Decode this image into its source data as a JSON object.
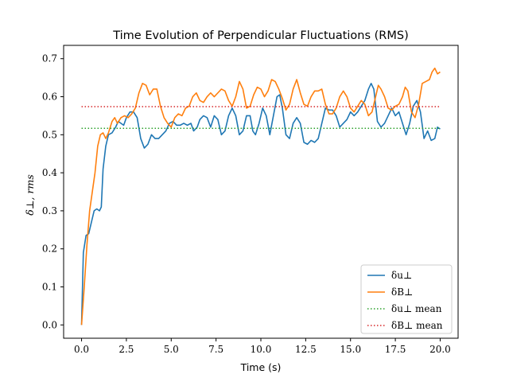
{
  "chart_data": {
    "type": "line",
    "title": "Time Evolution of Perpendicular Fluctuations (RMS)",
    "xlabel": "Time (s)",
    "ylabel": "δ⊥, rms",
    "xlim": [
      -1.0,
      21.0
    ],
    "ylim": [
      -0.035,
      0.735
    ],
    "grid": false,
    "legend_position": "lower-right",
    "x_ticks": [
      0,
      2.5,
      5,
      7.5,
      10,
      12.5,
      15,
      17.5,
      20
    ],
    "x_tick_labels": [
      "0.0",
      "2.5",
      "5.0",
      "7.5",
      "10.0",
      "12.5",
      "15.0",
      "17.5",
      "20.0"
    ],
    "y_ticks": [
      0,
      0.1,
      0.2,
      0.3,
      0.4,
      0.5,
      0.6,
      0.7
    ],
    "y_tick_labels": [
      "0.0",
      "0.1",
      "0.2",
      "0.3",
      "0.4",
      "0.5",
      "0.6",
      "0.7"
    ],
    "series": [
      {
        "name": "δu⊥",
        "color": "#1f77b4",
        "style": "solid",
        "points": [
          [
            0.0,
            0.0
          ],
          [
            0.1,
            0.19
          ],
          [
            0.25,
            0.235
          ],
          [
            0.4,
            0.24
          ],
          [
            0.55,
            0.27
          ],
          [
            0.7,
            0.3
          ],
          [
            0.85,
            0.305
          ],
          [
            1.0,
            0.3
          ],
          [
            1.1,
            0.31
          ],
          [
            1.2,
            0.41
          ],
          [
            1.35,
            0.47
          ],
          [
            1.5,
            0.5
          ],
          [
            1.7,
            0.505
          ],
          [
            1.9,
            0.52
          ],
          [
            2.05,
            0.535
          ],
          [
            2.2,
            0.53
          ],
          [
            2.35,
            0.525
          ],
          [
            2.5,
            0.545
          ],
          [
            2.7,
            0.56
          ],
          [
            2.9,
            0.56
          ],
          [
            3.1,
            0.545
          ],
          [
            3.3,
            0.49
          ],
          [
            3.5,
            0.465
          ],
          [
            3.7,
            0.475
          ],
          [
            3.9,
            0.5
          ],
          [
            4.1,
            0.49
          ],
          [
            4.3,
            0.49
          ],
          [
            4.5,
            0.5
          ],
          [
            4.7,
            0.51
          ],
          [
            4.9,
            0.53
          ],
          [
            5.1,
            0.535
          ],
          [
            5.3,
            0.525
          ],
          [
            5.5,
            0.525
          ],
          [
            5.7,
            0.53
          ],
          [
            5.9,
            0.525
          ],
          [
            6.1,
            0.53
          ],
          [
            6.25,
            0.51
          ],
          [
            6.45,
            0.52
          ],
          [
            6.6,
            0.54
          ],
          [
            6.8,
            0.55
          ],
          [
            7.0,
            0.545
          ],
          [
            7.2,
            0.52
          ],
          [
            7.4,
            0.55
          ],
          [
            7.6,
            0.54
          ],
          [
            7.8,
            0.5
          ],
          [
            8.0,
            0.51
          ],
          [
            8.2,
            0.55
          ],
          [
            8.4,
            0.57
          ],
          [
            8.6,
            0.55
          ],
          [
            8.8,
            0.5
          ],
          [
            9.0,
            0.51
          ],
          [
            9.2,
            0.55
          ],
          [
            9.4,
            0.55
          ],
          [
            9.55,
            0.51
          ],
          [
            9.7,
            0.5
          ],
          [
            9.9,
            0.53
          ],
          [
            10.1,
            0.57
          ],
          [
            10.3,
            0.55
          ],
          [
            10.5,
            0.5
          ],
          [
            10.7,
            0.55
          ],
          [
            10.9,
            0.6
          ],
          [
            11.05,
            0.605
          ],
          [
            11.2,
            0.57
          ],
          [
            11.4,
            0.5
          ],
          [
            11.6,
            0.49
          ],
          [
            11.8,
            0.53
          ],
          [
            12.0,
            0.545
          ],
          [
            12.2,
            0.53
          ],
          [
            12.4,
            0.48
          ],
          [
            12.6,
            0.475
          ],
          [
            12.8,
            0.485
          ],
          [
            13.0,
            0.48
          ],
          [
            13.2,
            0.49
          ],
          [
            13.4,
            0.53
          ],
          [
            13.6,
            0.57
          ],
          [
            13.8,
            0.565
          ],
          [
            14.0,
            0.565
          ],
          [
            14.2,
            0.55
          ],
          [
            14.4,
            0.52
          ],
          [
            14.6,
            0.53
          ],
          [
            14.8,
            0.54
          ],
          [
            15.0,
            0.56
          ],
          [
            15.2,
            0.55
          ],
          [
            15.4,
            0.56
          ],
          [
            15.6,
            0.575
          ],
          [
            15.8,
            0.59
          ],
          [
            16.0,
            0.62
          ],
          [
            16.15,
            0.635
          ],
          [
            16.3,
            0.62
          ],
          [
            16.5,
            0.535
          ],
          [
            16.7,
            0.52
          ],
          [
            16.9,
            0.53
          ],
          [
            17.1,
            0.55
          ],
          [
            17.3,
            0.57
          ],
          [
            17.5,
            0.55
          ],
          [
            17.7,
            0.56
          ],
          [
            17.9,
            0.53
          ],
          [
            18.1,
            0.5
          ],
          [
            18.3,
            0.53
          ],
          [
            18.5,
            0.575
          ],
          [
            18.7,
            0.59
          ],
          [
            18.9,
            0.56
          ],
          [
            19.1,
            0.49
          ],
          [
            19.3,
            0.51
          ],
          [
            19.5,
            0.485
          ],
          [
            19.7,
            0.49
          ],
          [
            19.85,
            0.52
          ],
          [
            20.0,
            0.515
          ]
        ]
      },
      {
        "name": "δB⊥",
        "color": "#ff7f0e",
        "style": "solid",
        "points": [
          [
            0.0,
            0.0
          ],
          [
            0.15,
            0.1
          ],
          [
            0.3,
            0.21
          ],
          [
            0.45,
            0.3
          ],
          [
            0.6,
            0.35
          ],
          [
            0.75,
            0.4
          ],
          [
            0.9,
            0.47
          ],
          [
            1.05,
            0.5
          ],
          [
            1.2,
            0.505
          ],
          [
            1.35,
            0.49
          ],
          [
            1.5,
            0.505
          ],
          [
            1.7,
            0.535
          ],
          [
            1.85,
            0.545
          ],
          [
            2.0,
            0.53
          ],
          [
            2.2,
            0.545
          ],
          [
            2.4,
            0.55
          ],
          [
            2.6,
            0.545
          ],
          [
            2.8,
            0.555
          ],
          [
            3.0,
            0.57
          ],
          [
            3.2,
            0.61
          ],
          [
            3.4,
            0.635
          ],
          [
            3.6,
            0.63
          ],
          [
            3.8,
            0.605
          ],
          [
            4.0,
            0.62
          ],
          [
            4.2,
            0.62
          ],
          [
            4.4,
            0.575
          ],
          [
            4.6,
            0.545
          ],
          [
            4.8,
            0.53
          ],
          [
            5.0,
            0.52
          ],
          [
            5.2,
            0.545
          ],
          [
            5.4,
            0.555
          ],
          [
            5.6,
            0.55
          ],
          [
            5.8,
            0.57
          ],
          [
            6.0,
            0.575
          ],
          [
            6.2,
            0.6
          ],
          [
            6.4,
            0.61
          ],
          [
            6.6,
            0.59
          ],
          [
            6.8,
            0.585
          ],
          [
            7.0,
            0.6
          ],
          [
            7.2,
            0.61
          ],
          [
            7.4,
            0.6
          ],
          [
            7.6,
            0.61
          ],
          [
            7.8,
            0.62
          ],
          [
            8.0,
            0.615
          ],
          [
            8.2,
            0.59
          ],
          [
            8.4,
            0.575
          ],
          [
            8.6,
            0.6
          ],
          [
            8.8,
            0.64
          ],
          [
            9.0,
            0.62
          ],
          [
            9.2,
            0.57
          ],
          [
            9.4,
            0.575
          ],
          [
            9.6,
            0.605
          ],
          [
            9.8,
            0.625
          ],
          [
            10.0,
            0.62
          ],
          [
            10.2,
            0.6
          ],
          [
            10.4,
            0.615
          ],
          [
            10.6,
            0.645
          ],
          [
            10.8,
            0.64
          ],
          [
            11.0,
            0.62
          ],
          [
            11.2,
            0.595
          ],
          [
            11.4,
            0.565
          ],
          [
            11.6,
            0.58
          ],
          [
            11.8,
            0.62
          ],
          [
            12.0,
            0.645
          ],
          [
            12.2,
            0.61
          ],
          [
            12.4,
            0.58
          ],
          [
            12.6,
            0.575
          ],
          [
            12.8,
            0.6
          ],
          [
            13.0,
            0.615
          ],
          [
            13.2,
            0.615
          ],
          [
            13.4,
            0.62
          ],
          [
            13.6,
            0.58
          ],
          [
            13.8,
            0.555
          ],
          [
            14.0,
            0.555
          ],
          [
            14.2,
            0.57
          ],
          [
            14.4,
            0.6
          ],
          [
            14.6,
            0.615
          ],
          [
            14.8,
            0.6
          ],
          [
            15.0,
            0.57
          ],
          [
            15.2,
            0.56
          ],
          [
            15.4,
            0.575
          ],
          [
            15.6,
            0.59
          ],
          [
            15.8,
            0.58
          ],
          [
            16.0,
            0.55
          ],
          [
            16.2,
            0.56
          ],
          [
            16.4,
            0.6
          ],
          [
            16.55,
            0.63
          ],
          [
            16.7,
            0.62
          ],
          [
            16.9,
            0.6
          ],
          [
            17.1,
            0.57
          ],
          [
            17.3,
            0.565
          ],
          [
            17.5,
            0.575
          ],
          [
            17.7,
            0.58
          ],
          [
            17.9,
            0.6
          ],
          [
            18.05,
            0.625
          ],
          [
            18.2,
            0.615
          ],
          [
            18.4,
            0.56
          ],
          [
            18.6,
            0.545
          ],
          [
            18.8,
            0.58
          ],
          [
            19.0,
            0.635
          ],
          [
            19.2,
            0.64
          ],
          [
            19.4,
            0.645
          ],
          [
            19.55,
            0.665
          ],
          [
            19.7,
            0.675
          ],
          [
            19.85,
            0.66
          ],
          [
            20.0,
            0.665
          ]
        ]
      },
      {
        "name": "δu⊥ mean",
        "color": "#2ca02c",
        "style": "dotted",
        "points": [
          [
            0.0,
            0.517
          ],
          [
            20.0,
            0.517
          ]
        ]
      },
      {
        "name": "δB⊥ mean",
        "color": "#d62728",
        "style": "dotted",
        "points": [
          [
            0.0,
            0.574
          ],
          [
            20.0,
            0.574
          ]
        ]
      }
    ]
  }
}
